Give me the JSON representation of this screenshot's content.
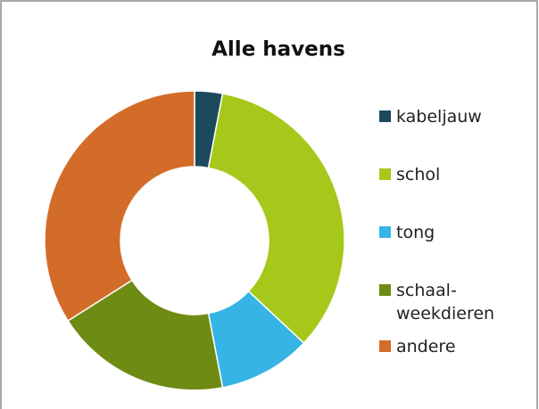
{
  "chart_data": {
    "type": "donut",
    "title": "Alle havens",
    "categories": [
      "kabeljauw",
      "schol",
      "tong",
      "schaal-\nweekdieren",
      "andere"
    ],
    "values": [
      3,
      34,
      10,
      19,
      34
    ],
    "colors": [
      "#1b4a5c",
      "#a6c81a",
      "#37b4e6",
      "#6e8b14",
      "#d26c28"
    ]
  }
}
